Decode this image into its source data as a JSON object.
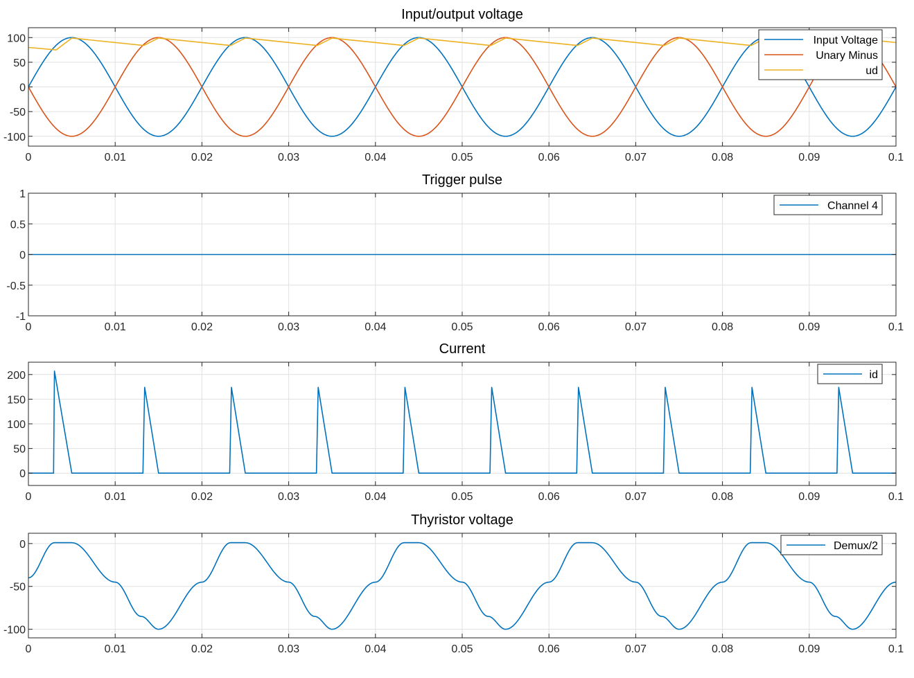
{
  "chart_data": [
    {
      "type": "line",
      "title": "Input/output voltage",
      "xlim": [
        0,
        0.1
      ],
      "ylim": [
        -120,
        120
      ],
      "xticks": [
        "0",
        "0.01",
        "0.02",
        "0.03",
        "0.04",
        "0.05",
        "0.06",
        "0.07",
        "0.08",
        "0.09",
        "0.1"
      ],
      "yticks": [
        "100",
        "50",
        "0",
        "-50",
        "-100"
      ],
      "grid": true,
      "legend_position": "top-right",
      "series": [
        {
          "name": "Input Voltage",
          "color": "#0072BD",
          "x": [
            0,
            0.005,
            0.01,
            0.015,
            0.02,
            0.025,
            0.03,
            0.035,
            0.04,
            0.045,
            0.05,
            0.055,
            0.06,
            0.065,
            0.07,
            0.075,
            0.08,
            0.085,
            0.09,
            0.095,
            0.1
          ],
          "y": [
            0,
            100,
            0,
            -100,
            0,
            100,
            0,
            -100,
            0,
            100,
            0,
            -100,
            0,
            100,
            0,
            -100,
            0,
            100,
            0,
            -100,
            0
          ]
        },
        {
          "name": "Unary Minus",
          "color": "#D95319",
          "x": [
            0,
            0.005,
            0.01,
            0.015,
            0.02,
            0.025,
            0.03,
            0.035,
            0.04,
            0.045,
            0.05,
            0.055,
            0.06,
            0.065,
            0.07,
            0.075,
            0.08,
            0.085,
            0.09,
            0.095,
            0.1
          ],
          "y": [
            0,
            -100,
            0,
            100,
            0,
            -100,
            0,
            100,
            0,
            -100,
            0,
            100,
            0,
            -100,
            0,
            100,
            0,
            -100,
            0,
            100,
            0
          ]
        },
        {
          "name": "ud",
          "color": "#EDB120",
          "x": [
            0,
            0.0032,
            0.005,
            0.0133,
            0.015,
            0.0233,
            0.025,
            0.0333,
            0.035,
            0.0433,
            0.045,
            0.0533,
            0.055,
            0.0633,
            0.065,
            0.0733,
            0.075,
            0.0833,
            0.085,
            0.0933,
            0.095,
            0.1
          ],
          "y": [
            80,
            75,
            99,
            84,
            99,
            84,
            99,
            84,
            99,
            84,
            99,
            84,
            99,
            84,
            99,
            84,
            99,
            84,
            99,
            84,
            99,
            90
          ]
        }
      ]
    },
    {
      "type": "line",
      "title": "Trigger pulse",
      "xlim": [
        0,
        0.1
      ],
      "ylim": [
        -1,
        1
      ],
      "xticks": [
        "0",
        "0.01",
        "0.02",
        "0.03",
        "0.04",
        "0.05",
        "0.06",
        "0.07",
        "0.08",
        "0.09",
        "0.1"
      ],
      "yticks": [
        "1",
        "0.5",
        "0",
        "-0.5",
        "-1"
      ],
      "grid": true,
      "legend_position": "top-right",
      "series": [
        {
          "name": "Channel 4",
          "color": "#0072BD",
          "x": [
            0,
            0.1
          ],
          "y": [
            0,
            0
          ]
        }
      ]
    },
    {
      "type": "line",
      "title": "Current",
      "xlim": [
        0,
        0.1
      ],
      "ylim": [
        -25,
        225
      ],
      "xticks": [
        "0",
        "0.01",
        "0.02",
        "0.03",
        "0.04",
        "0.05",
        "0.06",
        "0.07",
        "0.08",
        "0.09",
        "0.1"
      ],
      "yticks": [
        "200",
        "150",
        "100",
        "50",
        "0"
      ],
      "grid": true,
      "legend_position": "top-right",
      "series": [
        {
          "name": "id",
          "color": "#0072BD",
          "x": [
            0,
            0.0029,
            0.003,
            0.005,
            0.0132,
            0.0134,
            0.015,
            0.0232,
            0.0234,
            0.025,
            0.0332,
            0.0334,
            0.035,
            0.0432,
            0.0434,
            0.045,
            0.0532,
            0.0534,
            0.055,
            0.0632,
            0.0634,
            0.065,
            0.0732,
            0.0734,
            0.075,
            0.0832,
            0.0834,
            0.085,
            0.0932,
            0.0934,
            0.095,
            0.1
          ],
          "y": [
            0,
            0,
            207,
            0,
            0,
            174,
            0,
            0,
            174,
            0,
            0,
            174,
            0,
            0,
            174,
            0,
            0,
            174,
            0,
            0,
            174,
            0,
            0,
            174,
            0,
            0,
            174,
            0,
            0,
            174,
            0,
            0
          ]
        }
      ]
    },
    {
      "type": "line",
      "title": "Thyristor voltage",
      "xlim": [
        0,
        0.1
      ],
      "ylim": [
        -110,
        12
      ],
      "xticks": [
        "0",
        "0.01",
        "0.02",
        "0.03",
        "0.04",
        "0.05",
        "0.06",
        "0.07",
        "0.08",
        "0.09",
        "0.1"
      ],
      "yticks": [
        "0",
        "-50",
        "-100"
      ],
      "grid": true,
      "legend_position": "top-right",
      "series": [
        {
          "name": "Demux/2",
          "color": "#0072BD",
          "x": [
            0,
            0.003,
            0.005,
            0.01,
            0.013,
            0.015,
            0.02,
            0.0233,
            0.025,
            0.03,
            0.033,
            0.035,
            0.04,
            0.0433,
            0.045,
            0.05,
            0.053,
            0.055,
            0.06,
            0.0633,
            0.065,
            0.07,
            0.073,
            0.075,
            0.08,
            0.0833,
            0.085,
            0.09,
            0.093,
            0.095,
            0.1
          ],
          "y": [
            -40,
            1,
            1,
            -45,
            -85,
            -100,
            -45,
            1,
            1,
            -45,
            -85,
            -100,
            -45,
            1,
            1,
            -45,
            -85,
            -100,
            -45,
            1,
            1,
            -45,
            -85,
            -100,
            -45,
            1,
            1,
            -45,
            -85,
            -100,
            -45
          ]
        }
      ]
    }
  ]
}
